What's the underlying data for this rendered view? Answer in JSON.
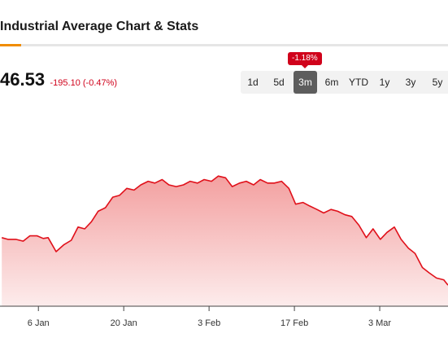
{
  "title": "Industrial Average Chart & Stats",
  "price": {
    "value": "46.53",
    "change": "-195.10 (-0.47%)"
  },
  "range": {
    "badge": "-1.18%",
    "selected": "3m",
    "options": [
      "1d",
      "5d",
      "3m",
      "6m",
      "YTD",
      "1y",
      "3y",
      "5y"
    ]
  },
  "colors": {
    "line": "#e0101a",
    "fill": "#f3a0a0",
    "accent": "#f08c00",
    "badge": "#d0021b"
  },
  "chart_data": {
    "type": "area",
    "x_tick_labels": [
      "6 Jan",
      "20 Jan",
      "3 Feb",
      "17 Feb",
      "3 Mar"
    ],
    "x_tick_days": [
      6,
      20,
      34,
      48,
      62
    ],
    "x_range_days": [
      -0.3,
      73.2
    ],
    "y_range": [
      0,
      100
    ],
    "grid": false,
    "series": [
      {
        "points": [
          [
            0.0,
            39
          ],
          [
            1.0,
            38
          ],
          [
            2.3,
            38
          ],
          [
            3.5,
            37
          ],
          [
            4.6,
            40
          ],
          [
            5.8,
            40
          ],
          [
            6.8,
            38.5
          ],
          [
            7.6,
            39
          ],
          [
            8.9,
            31
          ],
          [
            10.2,
            35
          ],
          [
            11.4,
            37.5
          ],
          [
            12.5,
            45
          ],
          [
            13.6,
            44
          ],
          [
            14.7,
            48
          ],
          [
            15.8,
            54
          ],
          [
            17.0,
            56
          ],
          [
            18.2,
            62
          ],
          [
            19.3,
            63
          ],
          [
            20.5,
            67
          ],
          [
            21.7,
            66
          ],
          [
            22.8,
            69
          ],
          [
            24.0,
            71
          ],
          [
            25.1,
            70
          ],
          [
            26.3,
            72
          ],
          [
            27.4,
            69
          ],
          [
            28.6,
            68
          ],
          [
            29.8,
            69
          ],
          [
            30.9,
            71
          ],
          [
            32.1,
            70
          ],
          [
            33.2,
            72
          ],
          [
            34.4,
            71
          ],
          [
            35.5,
            74
          ],
          [
            36.7,
            73
          ],
          [
            37.8,
            68
          ],
          [
            39.0,
            70
          ],
          [
            40.1,
            71
          ],
          [
            41.3,
            69
          ],
          [
            42.4,
            72
          ],
          [
            43.6,
            70
          ],
          [
            44.7,
            70
          ],
          [
            45.9,
            71
          ],
          [
            47.1,
            67
          ],
          [
            48.2,
            58
          ],
          [
            49.4,
            59
          ],
          [
            50.5,
            57
          ],
          [
            51.7,
            55
          ],
          [
            52.8,
            53
          ],
          [
            54.0,
            55
          ],
          [
            55.1,
            54
          ],
          [
            56.3,
            52
          ],
          [
            57.4,
            51
          ],
          [
            58.6,
            46
          ],
          [
            59.8,
            39
          ],
          [
            60.9,
            44
          ],
          [
            62.1,
            38
          ],
          [
            63.2,
            42
          ],
          [
            64.4,
            45
          ],
          [
            65.5,
            38
          ],
          [
            66.7,
            33
          ],
          [
            67.8,
            30
          ],
          [
            69.0,
            22
          ],
          [
            70.1,
            19
          ],
          [
            71.3,
            16
          ],
          [
            72.5,
            15
          ],
          [
            73.2,
            12
          ]
        ]
      }
    ]
  }
}
